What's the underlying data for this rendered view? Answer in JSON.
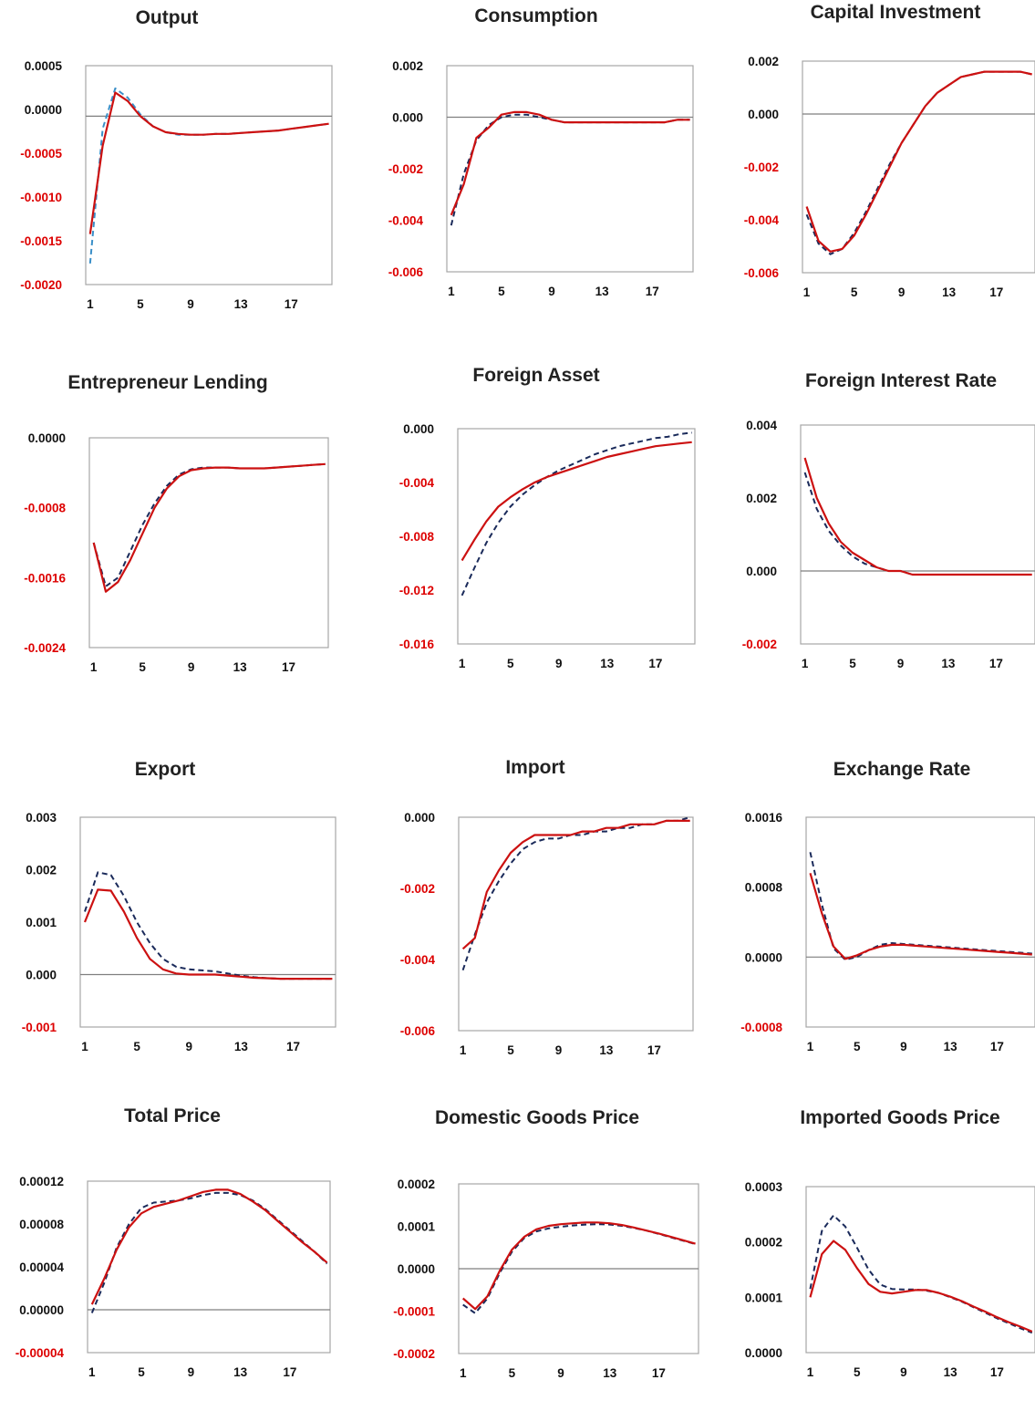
{
  "colors": {
    "solid_series": "#cc1111",
    "dashed_series": "#1a2a5a",
    "dashed_series_light": "#3a8fc8",
    "negative_tick": "#dd0000",
    "tick": "#111111"
  },
  "chart_data": [
    {
      "type": "line",
      "title": "Output",
      "x": [
        1,
        2,
        3,
        4,
        5,
        6,
        7,
        8,
        9,
        10,
        11,
        12,
        13,
        14,
        15,
        16,
        17,
        18,
        19,
        20
      ],
      "xticks": [
        "1",
        "5",
        "9",
        "13",
        "17"
      ],
      "yticks": [
        "0.0005",
        "0.0000",
        "-0.0005",
        "-0.0010",
        "-0.0015",
        "-0.0020"
      ],
      "ylim": [
        -0.002,
        0.0006
      ],
      "xlabel": "",
      "ylabel": "",
      "series": [
        {
          "style": "dashed-light",
          "values": [
            -0.00175,
            -0.00015,
            0.00033,
            0.00022,
            2e-05,
            -0.00012,
            -0.00019,
            -0.00022,
            -0.00022,
            -0.00022,
            -0.00021,
            -0.00021,
            -0.0002,
            -0.00019,
            -0.00018,
            -0.00017,
            -0.00015,
            -0.00013,
            -0.00011,
            -9e-05
          ]
        },
        {
          "style": "solid",
          "values": [
            -0.0014,
            -0.00035,
            0.00028,
            0.00018,
            0.0,
            -0.00012,
            -0.00019,
            -0.00021,
            -0.00022,
            -0.00022,
            -0.00021,
            -0.00021,
            -0.0002,
            -0.00019,
            -0.00018,
            -0.00017,
            -0.00015,
            -0.00013,
            -0.00011,
            -9e-05
          ]
        }
      ]
    },
    {
      "type": "line",
      "title": "Consumption",
      "x": [
        1,
        2,
        3,
        4,
        5,
        6,
        7,
        8,
        9,
        10,
        11,
        12,
        13,
        14,
        15,
        16,
        17,
        18,
        19,
        20
      ],
      "xticks": [
        "1",
        "5",
        "9",
        "13",
        "17"
      ],
      "yticks": [
        "0.002",
        "0.000",
        "-0.002",
        "-0.004",
        "-0.006"
      ],
      "ylim": [
        -0.006,
        0.002
      ],
      "xlabel": "",
      "ylabel": "",
      "series": [
        {
          "style": "dashed",
          "values": [
            -0.0042,
            -0.0022,
            -0.0009,
            -0.0003,
            0.0,
            0.0001,
            0.0001,
            0.0,
            -0.0001,
            -0.0002,
            -0.0002,
            -0.0002,
            -0.0002,
            -0.0002,
            -0.0002,
            -0.0002,
            -0.0002,
            -0.0002,
            -0.0001,
            -0.0001
          ]
        },
        {
          "style": "solid",
          "values": [
            -0.0038,
            -0.0026,
            -0.0008,
            -0.0004,
            0.0001,
            0.0002,
            0.0002,
            0.0001,
            -0.0001,
            -0.0002,
            -0.0002,
            -0.0002,
            -0.0002,
            -0.0002,
            -0.0002,
            -0.0002,
            -0.0002,
            -0.0002,
            -0.0001,
            -0.0001
          ]
        }
      ]
    },
    {
      "type": "line",
      "title": "Capital Investment",
      "x": [
        1,
        2,
        3,
        4,
        5,
        6,
        7,
        8,
        9,
        10,
        11,
        12,
        13,
        14,
        15,
        16,
        17,
        18,
        19,
        20
      ],
      "xticks": [
        "1",
        "5",
        "9",
        "13",
        "17"
      ],
      "yticks": [
        "0.002",
        "0.000",
        "-0.002",
        "-0.004",
        "-0.006"
      ],
      "ylim": [
        -0.006,
        0.002
      ],
      "xlabel": "",
      "ylabel": "",
      "series": [
        {
          "style": "dashed",
          "values": [
            -0.0038,
            -0.0049,
            -0.0053,
            -0.0051,
            -0.0045,
            -0.0037,
            -0.0028,
            -0.0019,
            -0.0011,
            -0.0004,
            0.0003,
            0.0008,
            0.0011,
            0.0014,
            0.0015,
            0.0016,
            0.0016,
            0.0016,
            0.0016,
            0.0015
          ]
        },
        {
          "style": "solid",
          "values": [
            -0.0035,
            -0.0048,
            -0.0052,
            -0.0051,
            -0.0046,
            -0.0038,
            -0.0029,
            -0.002,
            -0.0011,
            -0.0004,
            0.0003,
            0.0008,
            0.0011,
            0.0014,
            0.0015,
            0.0016,
            0.0016,
            0.0016,
            0.0016,
            0.0015
          ]
        }
      ]
    },
    {
      "type": "line",
      "title": "Entrepreneur Lending",
      "x": [
        1,
        2,
        3,
        4,
        5,
        6,
        7,
        8,
        9,
        10,
        11,
        12,
        13,
        14,
        15,
        16,
        17,
        18,
        19,
        20
      ],
      "xticks": [
        "1",
        "5",
        "9",
        "13",
        "17"
      ],
      "yticks": [
        "0.0000",
        "-0.0008",
        "-0.0016",
        "-0.0024"
      ],
      "ylim": [
        -0.0024,
        0.0
      ],
      "xlabel": "",
      "ylabel": "",
      "series": [
        {
          "style": "dashed",
          "values": [
            -0.0012,
            -0.0017,
            -0.0016,
            -0.0013,
            -0.001,
            -0.00075,
            -0.00055,
            -0.00042,
            -0.00036,
            -0.00034,
            -0.00034,
            -0.00034,
            -0.00035,
            -0.00035,
            -0.00035,
            -0.00034,
            -0.00033,
            -0.00032,
            -0.00031,
            -0.0003
          ]
        },
        {
          "style": "solid",
          "values": [
            -0.0012,
            -0.00176,
            -0.00165,
            -0.0014,
            -0.0011,
            -0.0008,
            -0.00058,
            -0.00044,
            -0.00037,
            -0.00035,
            -0.00034,
            -0.00034,
            -0.00035,
            -0.00035,
            -0.00035,
            -0.00034,
            -0.00033,
            -0.00032,
            -0.00031,
            -0.0003
          ]
        }
      ]
    },
    {
      "type": "line",
      "title": "Foreign Asset",
      "x": [
        1,
        2,
        3,
        4,
        5,
        6,
        7,
        8,
        9,
        10,
        11,
        12,
        13,
        14,
        15,
        16,
        17,
        18,
        19,
        20
      ],
      "xticks": [
        "1",
        "5",
        "9",
        "13",
        "17"
      ],
      "yticks": [
        "0.000",
        "-0.004",
        "-0.008",
        "-0.012",
        "-0.016"
      ],
      "ylim": [
        -0.016,
        0.0
      ],
      "xlabel": "",
      "ylabel": "",
      "series": [
        {
          "style": "dashed",
          "values": [
            -0.0124,
            -0.0104,
            -0.0085,
            -0.007,
            -0.0058,
            -0.0049,
            -0.0042,
            -0.0036,
            -0.0031,
            -0.0027,
            -0.0023,
            -0.0019,
            -0.0016,
            -0.0013,
            -0.0011,
            -0.0009,
            -0.0007,
            -0.0006,
            -0.0004,
            -0.0003
          ]
        },
        {
          "style": "solid",
          "values": [
            -0.0098,
            -0.0083,
            -0.0069,
            -0.0058,
            -0.0051,
            -0.0045,
            -0.004,
            -0.0036,
            -0.0033,
            -0.003,
            -0.0027,
            -0.0024,
            -0.0021,
            -0.0019,
            -0.0017,
            -0.0015,
            -0.0013,
            -0.0012,
            -0.0011,
            -0.001
          ]
        }
      ]
    },
    {
      "type": "line",
      "title": "Foreign Interest Rate",
      "x": [
        1,
        2,
        3,
        4,
        5,
        6,
        7,
        8,
        9,
        10,
        11,
        12,
        13,
        14,
        15,
        16,
        17,
        18,
        19,
        20
      ],
      "xticks": [
        "1",
        "5",
        "9",
        "13",
        "17"
      ],
      "yticks": [
        "0.004",
        "0.002",
        "0.000",
        "-0.002"
      ],
      "ylim": [
        -0.002,
        0.004
      ],
      "xlabel": "",
      "ylabel": "",
      "series": [
        {
          "style": "dashed",
          "values": [
            0.0027,
            0.0017,
            0.0011,
            0.0007,
            0.0004,
            0.0002,
            0.0001,
            0.0,
            0.0,
            -0.0001,
            -0.0001,
            -0.0001,
            -0.0001,
            -0.0001,
            -0.0001,
            -0.0001,
            -0.0001,
            -0.0001,
            -0.0001,
            -0.0001
          ]
        },
        {
          "style": "solid",
          "values": [
            0.0031,
            0.002,
            0.0013,
            0.0008,
            0.0005,
            0.0003,
            0.0001,
            0.0,
            0.0,
            -0.0001,
            -0.0001,
            -0.0001,
            -0.0001,
            -0.0001,
            -0.0001,
            -0.0001,
            -0.0001,
            -0.0001,
            -0.0001,
            -0.0001
          ]
        }
      ]
    },
    {
      "type": "line",
      "title": "Export",
      "x": [
        1,
        2,
        3,
        4,
        5,
        6,
        7,
        8,
        9,
        10,
        11,
        12,
        13,
        14,
        15,
        16,
        17,
        18,
        19,
        20
      ],
      "xticks": [
        "1",
        "5",
        "9",
        "13",
        "17"
      ],
      "yticks": [
        "0.003",
        "0.002",
        "0.001",
        "0.000",
        "-0.001"
      ],
      "ylim": [
        -0.001,
        0.003
      ],
      "xlabel": "",
      "ylabel": "",
      "series": [
        {
          "style": "dashed",
          "values": [
            0.0012,
            0.00195,
            0.0019,
            0.0015,
            0.001,
            0.0006,
            0.0003,
            0.00015,
            0.0001,
            8e-05,
            6e-05,
            2e-05,
            -2e-05,
            -5e-05,
            -7e-05,
            -8e-05,
            -8e-05,
            -8e-05,
            -8e-05,
            -8e-05
          ]
        },
        {
          "style": "solid",
          "values": [
            0.001,
            0.00162,
            0.0016,
            0.0012,
            0.0007,
            0.0003,
            0.0001,
            2e-05,
            0.0,
            0.0,
            0.0,
            -2e-05,
            -4e-05,
            -6e-05,
            -7e-05,
            -8e-05,
            -8e-05,
            -8e-05,
            -8e-05,
            -8e-05
          ]
        }
      ]
    },
    {
      "type": "line",
      "title": "Import",
      "x": [
        1,
        2,
        3,
        4,
        5,
        6,
        7,
        8,
        9,
        10,
        11,
        12,
        13,
        14,
        15,
        16,
        17,
        18,
        19,
        20
      ],
      "xticks": [
        "1",
        "5",
        "9",
        "13",
        "17"
      ],
      "yticks": [
        "0.000",
        "-0.002",
        "-0.004",
        "-0.006"
      ],
      "ylim": [
        -0.006,
        0.0
      ],
      "xlabel": "",
      "ylabel": "",
      "series": [
        {
          "style": "dashed",
          "values": [
            -0.0043,
            -0.0033,
            -0.0024,
            -0.0018,
            -0.0013,
            -0.0009,
            -0.0007,
            -0.0006,
            -0.0006,
            -0.0005,
            -0.0005,
            -0.0004,
            -0.0004,
            -0.0003,
            -0.0003,
            -0.0002,
            -0.0002,
            -0.0001,
            -0.0001,
            0.0
          ]
        },
        {
          "style": "solid",
          "values": [
            -0.0037,
            -0.0034,
            -0.0021,
            -0.0015,
            -0.001,
            -0.0007,
            -0.0005,
            -0.0005,
            -0.0005,
            -0.0005,
            -0.0004,
            -0.0004,
            -0.0003,
            -0.0003,
            -0.0002,
            -0.0002,
            -0.0002,
            -0.0001,
            -0.0001,
            -0.0001
          ]
        }
      ]
    },
    {
      "type": "line",
      "title": "Exchange Rate",
      "x": [
        1,
        2,
        3,
        4,
        5,
        6,
        7,
        8,
        9,
        10,
        11,
        12,
        13,
        14,
        15,
        16,
        17,
        18,
        19,
        20
      ],
      "xticks": [
        "1",
        "5",
        "9",
        "13",
        "17"
      ],
      "yticks": [
        "0.0016",
        "0.0008",
        "0.0000",
        "-0.0008"
      ],
      "ylim": [
        -0.0008,
        0.0016
      ],
      "xlabel": "",
      "ylabel": "",
      "series": [
        {
          "style": "dashed",
          "values": [
            0.0012,
            0.0006,
            0.0001,
            -3e-05,
            0.0,
            8e-05,
            0.00014,
            0.00016,
            0.00015,
            0.00014,
            0.00013,
            0.00012,
            0.00011,
            0.0001,
            9e-05,
            8e-05,
            7e-05,
            6e-05,
            5e-05,
            4e-05
          ]
        },
        {
          "style": "solid",
          "values": [
            0.00096,
            0.0005,
            0.00012,
            -2e-05,
            2e-05,
            8e-05,
            0.00012,
            0.00014,
            0.00014,
            0.00013,
            0.00012,
            0.00011,
            0.0001,
            9e-05,
            8e-05,
            7e-05,
            6e-05,
            5e-05,
            4e-05,
            3e-05
          ]
        }
      ]
    },
    {
      "type": "line",
      "title": "Total Price",
      "x": [
        1,
        2,
        3,
        4,
        5,
        6,
        7,
        8,
        9,
        10,
        11,
        12,
        13,
        14,
        15,
        16,
        17,
        18,
        19,
        20
      ],
      "xticks": [
        "1",
        "5",
        "9",
        "13",
        "17"
      ],
      "yticks": [
        "0.00012",
        "0.00008",
        "0.00004",
        "0.00000",
        "-0.00004"
      ],
      "ylim": [
        -4e-05,
        0.00012
      ],
      "xlabel": "",
      "ylabel": "",
      "series": [
        {
          "style": "dashed",
          "values": [
            -3e-06,
            2.5e-05,
            5.8e-05,
            8e-05,
            9.5e-05,
            0.0001,
            0.000101,
            0.000102,
            0.000104,
            0.000107,
            0.000109,
            0.000109,
            0.000107,
            0.000102,
            9.4e-05,
            8.4e-05,
            7.4e-05,
            6.4e-05,
            5.4e-05,
            4.3e-05
          ]
        },
        {
          "style": "solid",
          "values": [
            5e-06,
            2.9e-05,
            5.6e-05,
            7.7e-05,
            9e-05,
            9.6e-05,
            9.9e-05,
            0.000102,
            0.000106,
            0.00011,
            0.000112,
            0.000112,
            0.000108,
            0.000101,
            9.3e-05,
            8.3e-05,
            7.3e-05,
            6.3e-05,
            5.4e-05,
            4.4e-05
          ]
        }
      ]
    },
    {
      "type": "line",
      "title": "Domestic Goods Price",
      "x": [
        1,
        2,
        3,
        4,
        5,
        6,
        7,
        8,
        9,
        10,
        11,
        12,
        13,
        14,
        15,
        16,
        17,
        18,
        19,
        20
      ],
      "xticks": [
        "1",
        "5",
        "9",
        "13",
        "17"
      ],
      "yticks": [
        "0.0002",
        "0.0001",
        "0.0000",
        "-0.0001",
        "-0.0002"
      ],
      "ylim": [
        -0.0002,
        0.0002
      ],
      "xlabel": "",
      "ylabel": "",
      "series": [
        {
          "style": "dashed",
          "values": [
            -8.5e-05,
            -0.000105,
            -7e-05,
            -1e-05,
            4e-05,
            7.2e-05,
            8.8e-05,
            9.5e-05,
            9.9e-05,
            0.000102,
            0.000104,
            0.000105,
            0.000104,
            0.000101,
            9.6e-05,
            9e-05,
            8.2e-05,
            7.4e-05,
            6.6e-05,
            5.8e-05
          ]
        },
        {
          "style": "solid",
          "values": [
            -7e-05,
            -9.5e-05,
            -6.5e-05,
            -5e-06,
            4.5e-05,
            7.5e-05,
            9.3e-05,
            0.000101,
            0.000105,
            0.000107,
            0.000109,
            0.000109,
            0.000107,
            0.000103,
            9.7e-05,
            9e-05,
            8.3e-05,
            7.5e-05,
            6.7e-05,
            5.9e-05
          ]
        }
      ]
    },
    {
      "type": "line",
      "title": "Imported Goods Price",
      "x": [
        1,
        2,
        3,
        4,
        5,
        6,
        7,
        8,
        9,
        10,
        11,
        12,
        13,
        14,
        15,
        16,
        17,
        18,
        19,
        20
      ],
      "xticks": [
        "1",
        "5",
        "9",
        "13",
        "17"
      ],
      "yticks": [
        "0.0003",
        "0.0002",
        "0.0001",
        "0.0000"
      ],
      "ylim": [
        0.0,
        0.0003
      ],
      "xlabel": "",
      "ylabel": "",
      "series": [
        {
          "style": "dashed",
          "values": [
            0.000115,
            0.00022,
            0.000248,
            0.000228,
            0.00019,
            0.00015,
            0.000123,
            0.000115,
            0.000114,
            0.000114,
            0.000112,
            0.000108,
            0.0001,
            9.2e-05,
            8.2e-05,
            7.2e-05,
            6.2e-05,
            5.3e-05,
            4.4e-05,
            3.6e-05
          ]
        },
        {
          "style": "solid",
          "values": [
            0.0001,
            0.000178,
            0.000202,
            0.000186,
            0.000153,
            0.000124,
            0.00011,
            0.000107,
            0.00011,
            0.000113,
            0.000113,
            0.000108,
            0.000101,
            9.3e-05,
            8.3e-05,
            7.4e-05,
            6.4e-05,
            5.5e-05,
            4.7e-05,
            3.8e-05
          ]
        }
      ]
    }
  ]
}
